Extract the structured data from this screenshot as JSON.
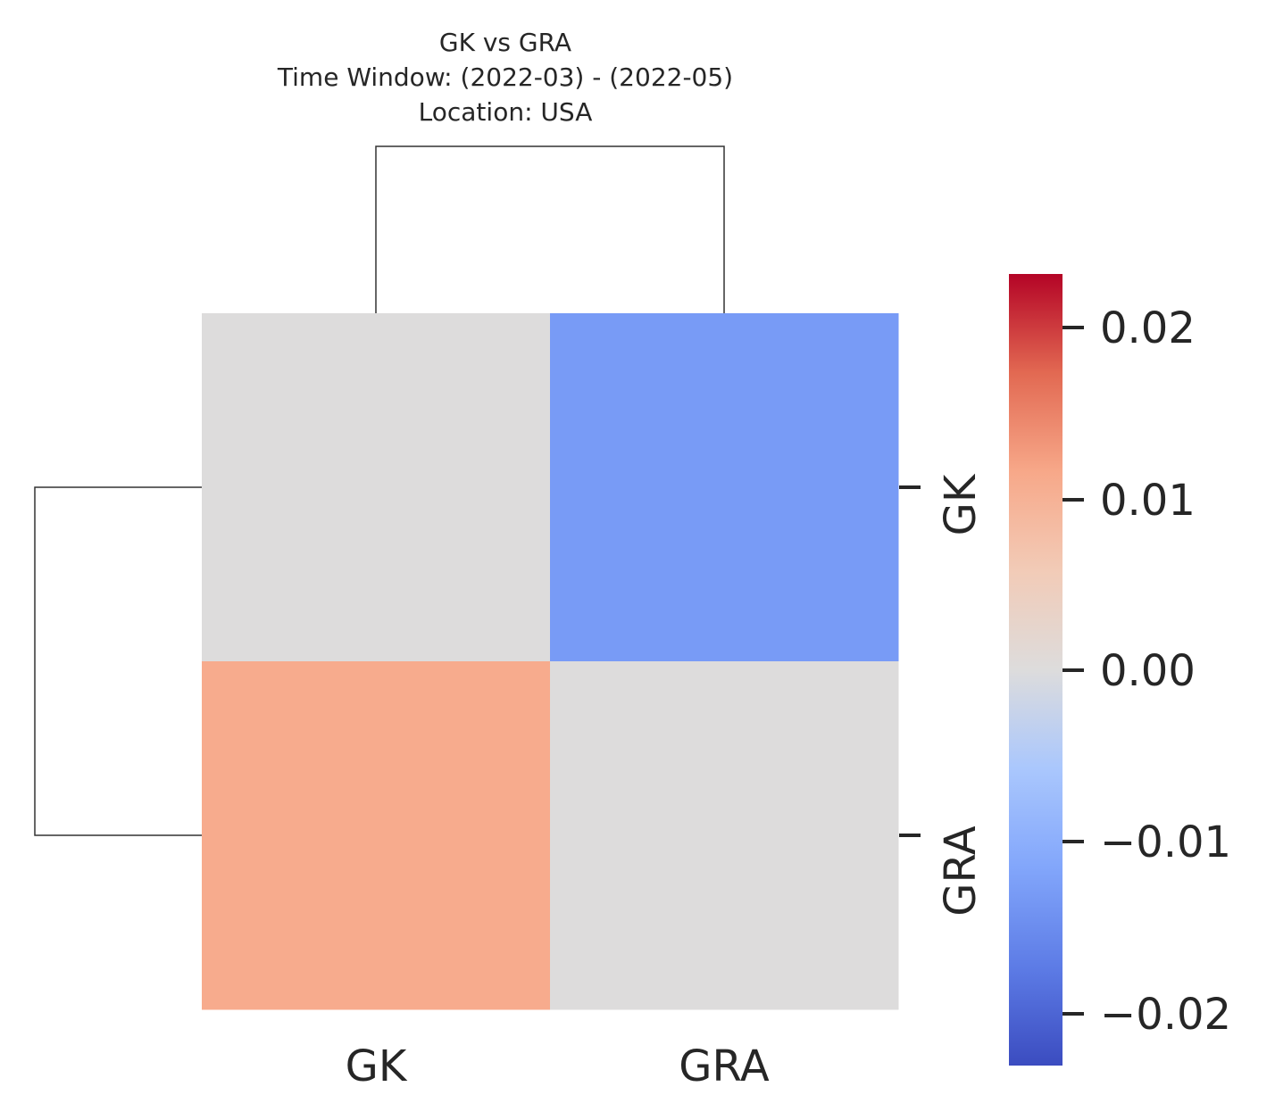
{
  "chart_data": {
    "type": "heatmap",
    "title_lines": [
      "GK vs GRA",
      "Time Window: (2022-03) - (2022-05)",
      "Location: USA"
    ],
    "columns": [
      "GK",
      "GRA"
    ],
    "rows": [
      "GK",
      "GRA"
    ],
    "values": [
      [
        0.0,
        -0.013
      ],
      [
        0.011,
        0.0
      ]
    ],
    "colormap": "coolwarm",
    "vmin": -0.023,
    "vmax": 0.023,
    "colorbar_ticks": [
      "0.02",
      "0.01",
      "0.00",
      "−0.01",
      "−0.02"
    ],
    "colorbar_tick_values": [
      0.02,
      0.01,
      0.0,
      -0.01,
      -0.02
    ],
    "row_dendrogram": true,
    "col_dendrogram": true
  }
}
